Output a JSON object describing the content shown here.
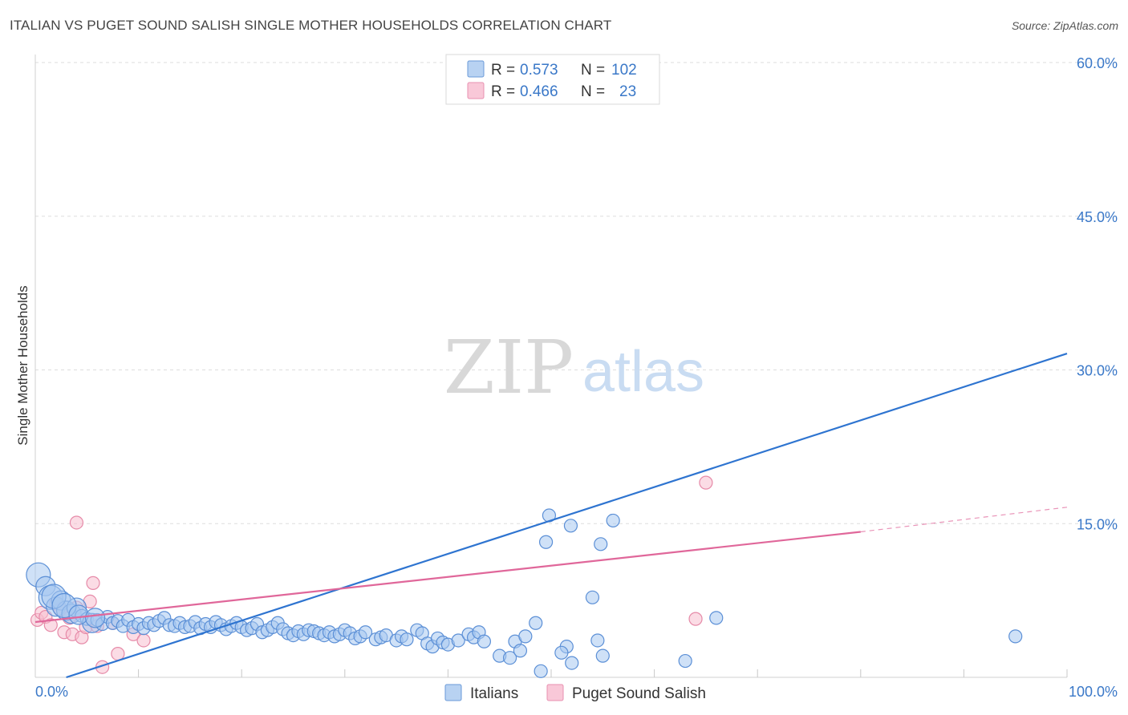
{
  "header": {
    "title": "ITALIAN VS PUGET SOUND SALISH SINGLE MOTHER HOUSEHOLDS CORRELATION CHART",
    "source": "Source: ZipAtlas.com"
  },
  "watermark": {
    "zip": "ZIP",
    "atlas": "atlas"
  },
  "colors": {
    "italians_fill": "#a8c8f0",
    "italians_stroke": "#5b8fd6",
    "italians_line": "#2e74d0",
    "salish_fill": "#f7bfd0",
    "salish_stroke": "#e68aa8",
    "salish_line": "#e0679a",
    "tick_text": "#3a78c8"
  },
  "legend": {
    "rows": [
      {
        "r_label": "R =",
        "r_value": "0.573",
        "n_label": "N =",
        "n_value": "102"
      },
      {
        "r_label": "R =",
        "r_value": "0.466",
        "n_label": "N =",
        "n_value": "23"
      }
    ]
  },
  "chart_data": {
    "type": "scatter",
    "title": "ITALIAN VS PUGET SOUND SALISH SINGLE MOTHER HOUSEHOLDS CORRELATION CHART",
    "xlabel": "",
    "ylabel": "Single Mother Households",
    "xlim": [
      0,
      100
    ],
    "ylim": [
      0,
      60
    ],
    "x_tick_labels": [
      "0.0%",
      "100.0%"
    ],
    "y_ticks": [
      15,
      30,
      45,
      60
    ],
    "y_tick_labels": [
      "15.0%",
      "30.0%",
      "45.0%",
      "60.0%"
    ],
    "grid": true,
    "legend_position": "bottom",
    "series": [
      {
        "name": "Italians",
        "r": 0.573,
        "n": 102,
        "trend": {
          "x0": 3.0,
          "y0": 0.0,
          "x1": 100.0,
          "y1": 31.6
        },
        "points": [
          {
            "x": 0.3,
            "y": 10.0,
            "s": 3
          },
          {
            "x": 1.0,
            "y": 8.9,
            "s": 2
          },
          {
            "x": 1.5,
            "y": 7.8,
            "s": 3
          },
          {
            "x": 2.0,
            "y": 6.9,
            "s": 2
          },
          {
            "x": 2.5,
            "y": 7.5,
            "s": 2
          },
          {
            "x": 3.0,
            "y": 6.5,
            "s": 2
          },
          {
            "x": 3.5,
            "y": 6.2,
            "s": 2
          },
          {
            "x": 4.0,
            "y": 6.8,
            "s": 2
          },
          {
            "x": 4.5,
            "y": 6.0,
            "s": 1
          },
          {
            "x": 5.0,
            "y": 5.7,
            "s": 1
          },
          {
            "x": 5.5,
            "y": 5.3,
            "s": 2
          },
          {
            "x": 6.0,
            "y": 5.6,
            "s": 1
          },
          {
            "x": 6.5,
            "y": 5.2,
            "s": 1
          },
          {
            "x": 7.0,
            "y": 5.9,
            "s": 1
          },
          {
            "x": 7.5,
            "y": 5.3,
            "s": 1
          },
          {
            "x": 8.0,
            "y": 5.5,
            "s": 1
          },
          {
            "x": 8.5,
            "y": 5.0,
            "s": 1
          },
          {
            "x": 9.0,
            "y": 5.6,
            "s": 1
          },
          {
            "x": 9.5,
            "y": 4.9,
            "s": 1
          },
          {
            "x": 10.0,
            "y": 5.2,
            "s": 1
          },
          {
            "x": 10.5,
            "y": 4.8,
            "s": 1
          },
          {
            "x": 11.0,
            "y": 5.3,
            "s": 1
          },
          {
            "x": 11.5,
            "y": 5.1,
            "s": 1
          },
          {
            "x": 12.0,
            "y": 5.5,
            "s": 1
          },
          {
            "x": 12.5,
            "y": 5.8,
            "s": 1
          },
          {
            "x": 13.0,
            "y": 5.1,
            "s": 1
          },
          {
            "x": 13.5,
            "y": 5.0,
            "s": 1
          },
          {
            "x": 14.0,
            "y": 5.3,
            "s": 1
          },
          {
            "x": 14.5,
            "y": 4.9,
            "s": 1
          },
          {
            "x": 15.0,
            "y": 5.0,
            "s": 1
          },
          {
            "x": 15.5,
            "y": 5.4,
            "s": 1
          },
          {
            "x": 16.0,
            "y": 4.8,
            "s": 1
          },
          {
            "x": 16.5,
            "y": 5.2,
            "s": 1
          },
          {
            "x": 17.0,
            "y": 4.9,
            "s": 1
          },
          {
            "x": 17.5,
            "y": 5.4,
            "s": 1
          },
          {
            "x": 18.0,
            "y": 5.1,
            "s": 1
          },
          {
            "x": 18.5,
            "y": 4.7,
            "s": 1
          },
          {
            "x": 19.0,
            "y": 5.0,
            "s": 1
          },
          {
            "x": 19.5,
            "y": 5.3,
            "s": 1
          },
          {
            "x": 20.0,
            "y": 4.9,
            "s": 1
          },
          {
            "x": 20.5,
            "y": 4.6,
            "s": 1
          },
          {
            "x": 21.0,
            "y": 4.8,
            "s": 1
          },
          {
            "x": 21.5,
            "y": 5.2,
            "s": 1
          },
          {
            "x": 22.0,
            "y": 4.4,
            "s": 1
          },
          {
            "x": 22.5,
            "y": 4.6,
            "s": 1
          },
          {
            "x": 23.0,
            "y": 4.9,
            "s": 1
          },
          {
            "x": 23.5,
            "y": 5.3,
            "s": 1
          },
          {
            "x": 24.0,
            "y": 4.7,
            "s": 1
          },
          {
            "x": 24.5,
            "y": 4.3,
            "s": 1
          },
          {
            "x": 25.0,
            "y": 4.1,
            "s": 1
          },
          {
            "x": 25.5,
            "y": 4.5,
            "s": 1
          },
          {
            "x": 26.0,
            "y": 4.2,
            "s": 1
          },
          {
            "x": 26.5,
            "y": 4.6,
            "s": 1
          },
          {
            "x": 27.0,
            "y": 4.5,
            "s": 1
          },
          {
            "x": 27.5,
            "y": 4.3,
            "s": 1
          },
          {
            "x": 28.0,
            "y": 4.1,
            "s": 1
          },
          {
            "x": 28.5,
            "y": 4.4,
            "s": 1
          },
          {
            "x": 29.0,
            "y": 4.0,
            "s": 1
          },
          {
            "x": 29.5,
            "y": 4.2,
            "s": 1
          },
          {
            "x": 30.0,
            "y": 4.6,
            "s": 1
          },
          {
            "x": 30.5,
            "y": 4.3,
            "s": 1
          },
          {
            "x": 31.0,
            "y": 3.8,
            "s": 1
          },
          {
            "x": 31.5,
            "y": 4.0,
            "s": 1
          },
          {
            "x": 32.0,
            "y": 4.4,
            "s": 1
          },
          {
            "x": 33.0,
            "y": 3.7,
            "s": 1
          },
          {
            "x": 33.5,
            "y": 3.9,
            "s": 1
          },
          {
            "x": 34.0,
            "y": 4.1,
            "s": 1
          },
          {
            "x": 35.0,
            "y": 3.6,
            "s": 1
          },
          {
            "x": 35.5,
            "y": 4.0,
            "s": 1
          },
          {
            "x": 36.0,
            "y": 3.7,
            "s": 1
          },
          {
            "x": 37.0,
            "y": 4.6,
            "s": 1
          },
          {
            "x": 37.5,
            "y": 4.3,
            "s": 1
          },
          {
            "x": 38.0,
            "y": 3.3,
            "s": 1
          },
          {
            "x": 38.5,
            "y": 3.0,
            "s": 1
          },
          {
            "x": 39.0,
            "y": 3.8,
            "s": 1
          },
          {
            "x": 39.5,
            "y": 3.4,
            "s": 1
          },
          {
            "x": 40.0,
            "y": 3.2,
            "s": 1
          },
          {
            "x": 41.0,
            "y": 3.6,
            "s": 1
          },
          {
            "x": 42.0,
            "y": 4.2,
            "s": 1
          },
          {
            "x": 42.5,
            "y": 3.9,
            "s": 1
          },
          {
            "x": 43.0,
            "y": 4.4,
            "s": 1
          },
          {
            "x": 43.5,
            "y": 3.5,
            "s": 1
          },
          {
            "x": 45.0,
            "y": 2.1,
            "s": 1
          },
          {
            "x": 46.0,
            "y": 1.9,
            "s": 1
          },
          {
            "x": 46.5,
            "y": 3.5,
            "s": 1
          },
          {
            "x": 47.0,
            "y": 2.6,
            "s": 1
          },
          {
            "x": 48.5,
            "y": 5.3,
            "s": 1
          },
          {
            "x": 47.5,
            "y": 4.0,
            "s": 1
          },
          {
            "x": 49.0,
            "y": 0.6,
            "s": 1
          },
          {
            "x": 51.5,
            "y": 3.0,
            "s": 1
          },
          {
            "x": 51.0,
            "y": 2.4,
            "s": 1
          },
          {
            "x": 52.0,
            "y": 1.4,
            "s": 1
          },
          {
            "x": 54.0,
            "y": 7.8,
            "s": 1
          },
          {
            "x": 54.5,
            "y": 3.6,
            "s": 1
          },
          {
            "x": 55.0,
            "y": 2.1,
            "s": 1
          },
          {
            "x": 49.5,
            "y": 13.2,
            "s": 1
          },
          {
            "x": 49.8,
            "y": 15.8,
            "s": 1
          },
          {
            "x": 51.9,
            "y": 14.8,
            "s": 1
          },
          {
            "x": 54.8,
            "y": 13.0,
            "s": 1
          },
          {
            "x": 56.0,
            "y": 15.3,
            "s": 1
          },
          {
            "x": 63.0,
            "y": 1.6,
            "s": 1
          },
          {
            "x": 66.0,
            "y": 5.8,
            "s": 1
          },
          {
            "x": 95.0,
            "y": 4.0,
            "s": 1
          },
          {
            "x": 1.8,
            "y": 7.9,
            "s": 3
          },
          {
            "x": 2.8,
            "y": 7.0,
            "s": 3
          },
          {
            "x": 4.2,
            "y": 6.1,
            "s": 2
          },
          {
            "x": 5.8,
            "y": 5.8,
            "s": 2
          }
        ]
      },
      {
        "name": "Puget Sound Salish",
        "r": 0.466,
        "n": 23,
        "trend": {
          "x0": 0.0,
          "y0": 5.4,
          "x1": 80.0,
          "y1": 14.2
        },
        "trend_dashed": {
          "x0": 80.0,
          "y0": 14.2,
          "x1": 100.0,
          "y1": 16.6
        },
        "points": [
          {
            "x": 0.2,
            "y": 5.6,
            "s": 1
          },
          {
            "x": 0.6,
            "y": 6.3,
            "s": 1
          },
          {
            "x": 1.0,
            "y": 5.9,
            "s": 1
          },
          {
            "x": 1.5,
            "y": 5.1,
            "s": 1
          },
          {
            "x": 2.0,
            "y": 7.2,
            "s": 1
          },
          {
            "x": 2.4,
            "y": 6.6,
            "s": 1
          },
          {
            "x": 2.8,
            "y": 4.4,
            "s": 1
          },
          {
            "x": 3.3,
            "y": 5.8,
            "s": 1
          },
          {
            "x": 3.6,
            "y": 4.2,
            "s": 1
          },
          {
            "x": 4.0,
            "y": 6.8,
            "s": 1
          },
          {
            "x": 4.5,
            "y": 3.9,
            "s": 1
          },
          {
            "x": 4.9,
            "y": 4.9,
            "s": 1
          },
          {
            "x": 5.3,
            "y": 7.4,
            "s": 1
          },
          {
            "x": 5.6,
            "y": 9.2,
            "s": 1
          },
          {
            "x": 6.0,
            "y": 5.0,
            "s": 1
          },
          {
            "x": 6.5,
            "y": 1.0,
            "s": 1
          },
          {
            "x": 7.5,
            "y": 5.3,
            "s": 1
          },
          {
            "x": 8.0,
            "y": 2.3,
            "s": 1
          },
          {
            "x": 9.5,
            "y": 4.2,
            "s": 1
          },
          {
            "x": 10.5,
            "y": 3.6,
            "s": 1
          },
          {
            "x": 4.0,
            "y": 15.1,
            "s": 1
          },
          {
            "x": 64.0,
            "y": 5.7,
            "s": 1
          },
          {
            "x": 65.0,
            "y": 19.0,
            "s": 1
          }
        ]
      }
    ]
  },
  "bottom_legend": {
    "items": [
      {
        "label": "Italians"
      },
      {
        "label": "Puget Sound Salish"
      }
    ]
  }
}
